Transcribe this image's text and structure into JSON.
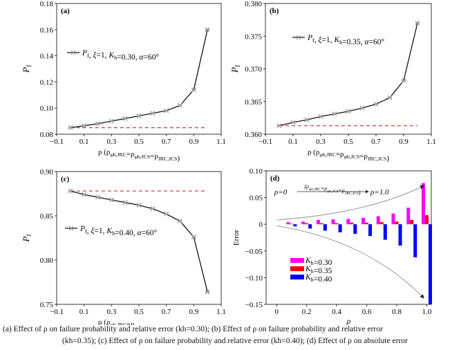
{
  "chart_data": [
    {
      "panel": "(a)",
      "type": "line",
      "x": [
        0,
        0.1,
        0.2,
        0.3,
        0.4,
        0.5,
        0.6,
        0.7,
        0.8,
        0.9,
        1.0
      ],
      "values": [
        0.085,
        0.0865,
        0.088,
        0.09,
        0.092,
        0.094,
        0.096,
        0.098,
        0.102,
        0.114,
        0.16
      ],
      "reference_line": 0.085,
      "xlim": [
        -0.1,
        1.1
      ],
      "ylim": [
        0.08,
        0.18
      ],
      "xticks": [
        "-0.1",
        "0.1",
        "0.3",
        "0.5",
        "0.7",
        "0.9",
        "1.1"
      ],
      "yticks": [
        "0.08",
        "0.10",
        "0.12",
        "0.14",
        "0.16",
        "0.18"
      ],
      "ylabel": {
        "main": "P",
        "sub": "f"
      },
      "xlabel": [
        [
          "ρ (ρ",
          ""
        ],
        [
          "φb,JRC",
          "s"
        ],
        [
          "=ρ",
          ""
        ],
        [
          "φb,JCS",
          "s"
        ],
        [
          "=ρ",
          ""
        ],
        [
          "JRC,JCS",
          "s"
        ],
        [
          ")",
          ""
        ]
      ],
      "legend": [
        [
          "P",
          "i"
        ],
        [
          "f",
          "s"
        ],
        [
          ", ",
          ""
        ],
        [
          "ξ",
          "i"
        ],
        [
          "=1, ",
          ""
        ],
        [
          "K",
          "i"
        ],
        [
          "h",
          "s"
        ],
        [
          "=0.30, ",
          ""
        ],
        [
          "α",
          "i"
        ],
        [
          "=60°",
          ""
        ]
      ]
    },
    {
      "panel": "(b)",
      "type": "line",
      "x": [
        0,
        0.1,
        0.2,
        0.3,
        0.4,
        0.5,
        0.6,
        0.7,
        0.8,
        0.9,
        1.0
      ],
      "values": [
        0.3613,
        0.3618,
        0.3622,
        0.3627,
        0.3631,
        0.3635,
        0.364,
        0.3646,
        0.3656,
        0.3682,
        0.377
      ],
      "reference_line": 0.3613,
      "xlim": [
        -0.1,
        1.1
      ],
      "ylim": [
        0.36,
        0.38
      ],
      "xticks": [
        "-0.1",
        "0.1",
        "0.3",
        "0.5",
        "0.7",
        "0.9",
        "1.1"
      ],
      "yticks": [
        "0.360",
        "0.365",
        "0.370",
        "0.375",
        "0.380"
      ],
      "ylabel": {
        "main": "P",
        "sub": "f"
      },
      "xlabel": [
        [
          "ρ (ρ",
          ""
        ],
        [
          "φb,JRC",
          "s"
        ],
        [
          "=ρ",
          ""
        ],
        [
          "φb,JCS",
          "s"
        ],
        [
          "=ρ",
          ""
        ],
        [
          "JRC,JCS",
          "s"
        ],
        [
          ")",
          ""
        ]
      ],
      "legend": [
        [
          "P",
          "i"
        ],
        [
          "f",
          "s"
        ],
        [
          ", ",
          ""
        ],
        [
          "ξ",
          "i"
        ],
        [
          "=1, ",
          ""
        ],
        [
          "K",
          "i"
        ],
        [
          "h",
          "s"
        ],
        [
          "=0.35, ",
          ""
        ],
        [
          "α",
          "i"
        ],
        [
          "=60°",
          ""
        ]
      ]
    },
    {
      "panel": "(c)",
      "type": "line",
      "x": [
        0,
        0.1,
        0.2,
        0.3,
        0.4,
        0.5,
        0.6,
        0.7,
        0.8,
        0.9,
        1.0
      ],
      "values": [
        0.878,
        0.874,
        0.871,
        0.868,
        0.865,
        0.862,
        0.858,
        0.852,
        0.844,
        0.826,
        0.764
      ],
      "reference_line": 0.878,
      "xlim": [
        -0.1,
        1.1
      ],
      "ylim": [
        0.75,
        0.9
      ],
      "xticks": [
        "-0.1",
        "0.1",
        "0.3",
        "0.5",
        "0.7",
        "0.9",
        "1.1"
      ],
      "yticks": [
        "0.75",
        "0.80",
        "0.85",
        "0.90"
      ],
      "ylabel": {
        "main": "P",
        "sub": "f"
      },
      "xlabel": [
        [
          "ρ (ρ",
          ""
        ],
        [
          "φb,JRC",
          "s"
        ],
        [
          "=ρ",
          ""
        ],
        [
          "φb,JCS",
          "s"
        ],
        [
          "=ρ",
          ""
        ],
        [
          "JRC,JCS",
          "s"
        ],
        [
          ")",
          ""
        ]
      ],
      "legend": [
        [
          "P",
          "i"
        ],
        [
          "f",
          "s"
        ],
        [
          ", ",
          ""
        ],
        [
          "ξ",
          "i"
        ],
        [
          "=1, ",
          ""
        ],
        [
          "K",
          "i"
        ],
        [
          "h",
          "s"
        ],
        [
          "=0.40, ",
          ""
        ],
        [
          "α",
          "i"
        ],
        [
          "=60°",
          ""
        ]
      ]
    },
    {
      "panel": "(d)",
      "type": "bar",
      "categories": [
        0.1,
        0.2,
        0.3,
        0.4,
        0.5,
        0.6,
        0.7,
        0.8,
        0.9,
        1.0
      ],
      "series": [
        {
          "name": "Kh=0.30",
          "color": "#ff00ff",
          "values": [
            0.004,
            0.005,
            0.008,
            0.009,
            0.01,
            0.012,
            0.015,
            0.02,
            0.031,
            0.077
          ]
        },
        {
          "name": "Kh=0.35",
          "color": "#ff0000",
          "values": [
            0.001,
            0.002,
            0.002,
            0.002,
            0.003,
            0.003,
            0.004,
            0.005,
            0.008,
            0.017
          ]
        },
        {
          "name": "Kh=0.40",
          "color": "#0000ff",
          "values": [
            -0.004,
            -0.008,
            -0.012,
            -0.015,
            -0.018,
            -0.022,
            -0.029,
            -0.04,
            -0.062,
            -0.15
          ]
        }
      ],
      "legend_labels": [
        [
          [
            "K",
            "i"
          ],
          [
            "h",
            "s"
          ],
          [
            "=0.30",
            ""
          ]
        ],
        [
          [
            "K",
            "i"
          ],
          [
            "h",
            "s"
          ],
          [
            "=0.35",
            ""
          ]
        ],
        [
          [
            "K",
            "i"
          ],
          [
            "h",
            "s"
          ],
          [
            "=0.40",
            ""
          ]
        ]
      ],
      "xlim": [
        -0.07,
        1.03
      ],
      "ylim": [
        -0.15,
        0.1
      ],
      "xticks": [
        "0",
        "0.2",
        "0.4",
        "0.6",
        "0.8",
        "1.0"
      ],
      "yticks": [
        "-0.15",
        "-0.10",
        "-0.05",
        "0",
        "0.05",
        "0.10"
      ],
      "ylabel": "Error",
      "xlabel": "ρ",
      "annotation": {
        "start": "ρ=0",
        "middle": [
          [
            "(ρ",
            ""
          ],
          [
            "φb,JRC",
            "s"
          ],
          [
            "=ρ",
            ""
          ],
          [
            "φb,JCS",
            "s"
          ],
          [
            "=ρ",
            ""
          ],
          [
            "JRC,JCS",
            "s"
          ],
          [
            ")",
            ""
          ]
        ],
        "end": "ρ=1.0"
      }
    }
  ],
  "caption": {
    "line1": "(a)  Effect  of  ρ  on  failure probability and relative error (kh=0.30); (b) Effect of ρ on failure probability and relative error",
    "line2": "(kh=0.35); (c) Effect of ρ on failure probability and relative error (kh=0.40); (d) Effect of ρ on absolute error"
  }
}
